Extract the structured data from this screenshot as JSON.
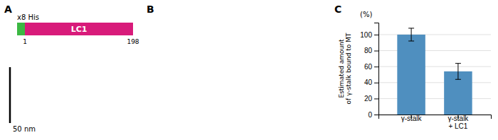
{
  "chart_data": {
    "type": "bar",
    "title": "C",
    "categories": [
      "γ-stalk",
      "γ-stalk\n+ LC1"
    ],
    "values": [
      100,
      54
    ],
    "errors": [
      8,
      10
    ],
    "color": "#4f8fbf",
    "ylabel": "Estimated amount\nof γ-stalk bound to MT",
    "ylim": [
      0,
      115
    ],
    "yticks": [
      0,
      20,
      40,
      60,
      80,
      100
    ],
    "grid": true,
    "annotations": [
      {
        "text": "(%)"
      },
      {
        "text": "A"
      },
      {
        "text": "x8 His",
        "color": "#3cb843"
      },
      {
        "text": "LC1",
        "color": "#d81b7a"
      },
      {
        "text": "1"
      },
      {
        "text": "198"
      },
      {
        "text": "50 nm"
      },
      {
        "text": "B"
      }
    ]
  }
}
